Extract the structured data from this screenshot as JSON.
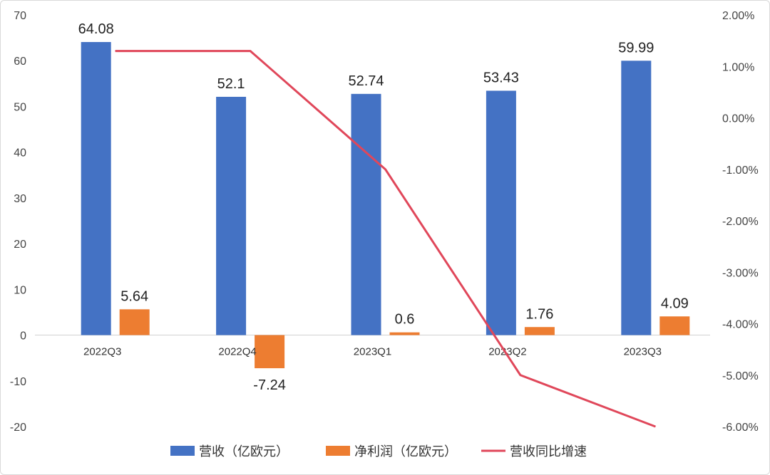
{
  "chart_data": {
    "type": "bar",
    "categories": [
      "2022Q3",
      "2022Q4",
      "2023Q1",
      "2023Q2",
      "2023Q3"
    ],
    "series": [
      {
        "name": "营收（亿欧元）",
        "type": "bar",
        "axis": "left",
        "color": "#4472C4",
        "values": [
          64.08,
          52.1,
          52.74,
          53.43,
          59.99
        ]
      },
      {
        "name": "净利润（亿欧元）",
        "type": "bar",
        "axis": "left",
        "color": "#ED7D31",
        "values": [
          5.64,
          -7.24,
          0.6,
          1.76,
          4.09
        ]
      },
      {
        "name": "营收同比增速",
        "type": "line",
        "axis": "right",
        "color": "#E0475A",
        "values": [
          1.3,
          1.3,
          -1.0,
          -5.0,
          -6.0
        ]
      }
    ],
    "data_labels": {
      "营收（亿欧元）": [
        "64.08",
        "52.1",
        "52.74",
        "53.43",
        "59.99"
      ],
      "净利润（亿欧元）": [
        "5.64",
        "-7.24",
        "0.6",
        "1.76",
        "4.09"
      ]
    },
    "y_left": {
      "min": -20,
      "max": 70,
      "ticks": [
        "70",
        "60",
        "50",
        "40",
        "30",
        "20",
        "10",
        "0",
        "-10",
        "-20"
      ],
      "tick_values": [
        70,
        60,
        50,
        40,
        30,
        20,
        10,
        0,
        -10,
        -20
      ]
    },
    "y_right": {
      "min": -6,
      "max": 2,
      "ticks": [
        "2.00%",
        "1.00%",
        "0.00%",
        "-1.00%",
        "-2.00%",
        "-3.00%",
        "-4.00%",
        "-5.00%",
        "-6.00%"
      ],
      "tick_values": [
        2,
        1,
        0,
        -1,
        -2,
        -3,
        -4,
        -5,
        -6
      ]
    },
    "grid": false,
    "legend_position": "bottom"
  }
}
